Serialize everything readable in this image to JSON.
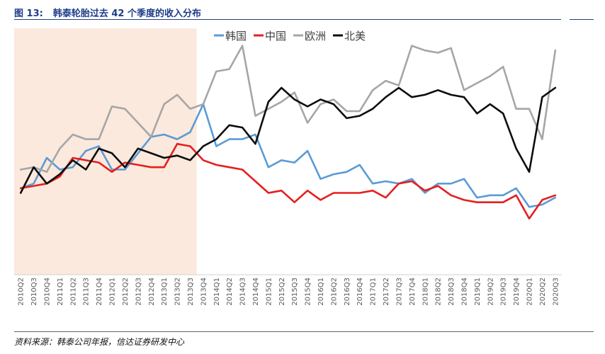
{
  "header": {
    "figure_no": "图 13:",
    "title": "韩泰轮胎过去 42 个季度的收入分布"
  },
  "footer": {
    "source": "资料来源：韩泰公司年报，信达证券研发中心"
  },
  "colors": {
    "korea": "#5b9bd5",
    "china": "#e51f1f",
    "europe": "#a6a6a6",
    "north_america": "#0d0d0d",
    "shade": "#fbe9dd",
    "title": "#1f3c88"
  },
  "chart_data": {
    "type": "line",
    "title": "韩泰轮胎过去 42 个季度的收入分布",
    "xlabel": "",
    "ylabel": "",
    "ylim": [
      0,
      100
    ],
    "y_axis_visible": false,
    "grid": false,
    "legend_position": "top",
    "highlight_range": [
      "2010Q2",
      "2013Q3"
    ],
    "categories": [
      "2010Q2",
      "2010Q3",
      "2010Q4",
      "2011Q1",
      "2011Q2",
      "2011Q3",
      "2011Q4",
      "2012Q1",
      "2012Q2",
      "2012Q3",
      "2012Q4",
      "2013Q1",
      "2013Q2",
      "2013Q3",
      "2013Q4",
      "2014Q1",
      "2014Q2",
      "2014Q3",
      "2014Q4",
      "2015Q1",
      "2015Q2",
      "2015Q3",
      "2015Q4",
      "2016Q1",
      "2016Q2",
      "2016Q3",
      "2016Q4",
      "2017Q1",
      "2017Q2",
      "2017Q3",
      "2017Q4",
      "2018Q1",
      "2018Q2",
      "2018Q3",
      "2018Q4",
      "2019Q1",
      "2019Q2",
      "2019Q3",
      "2019Q4",
      "2020Q1",
      "2020Q2",
      "2020Q3"
    ],
    "series": [
      {
        "name": "韩国",
        "color_key": "korea",
        "values": [
          37,
          39,
          50,
          45,
          46,
          53,
          55,
          45,
          45,
          52,
          59,
          60,
          58,
          61,
          73,
          55,
          58,
          58,
          60,
          46,
          49,
          48,
          53,
          41,
          43,
          44,
          47,
          39,
          40,
          39,
          41,
          35,
          39,
          39,
          41,
          33,
          34,
          34,
          37,
          29,
          30,
          33
        ]
      },
      {
        "name": "中国",
        "color_key": "china",
        "values": [
          37,
          38,
          39,
          42,
          50,
          49,
          48,
          44,
          48,
          47,
          46,
          46,
          56,
          55,
          49,
          47,
          46,
          45,
          40,
          35,
          36,
          31,
          36,
          32,
          35,
          35,
          35,
          36,
          33,
          39,
          40,
          36,
          38,
          34,
          32,
          31,
          31,
          31,
          34,
          24,
          32,
          34
        ]
      },
      {
        "name": "欧洲",
        "color_key": "europe",
        "values": [
          45,
          46,
          44,
          54,
          60,
          58,
          58,
          72,
          71,
          65,
          59,
          73,
          77,
          71,
          73,
          87,
          88,
          98,
          68,
          71,
          74,
          78,
          65,
          73,
          75,
          70,
          70,
          79,
          83,
          81,
          98,
          96,
          95,
          97,
          79,
          82,
          85,
          89,
          71,
          71,
          58,
          96
        ]
      },
      {
        "name": "北美",
        "color_key": "north_america",
        "values": [
          35,
          46,
          39,
          43,
          49,
          45,
          54,
          52,
          46,
          54,
          52,
          50,
          51,
          49,
          55,
          58,
          64,
          63,
          56,
          74,
          80,
          75,
          72,
          75,
          73,
          67,
          68,
          71,
          76,
          80,
          76,
          77,
          79,
          77,
          76,
          69,
          73,
          69,
          54,
          44,
          76,
          80
        ]
      }
    ]
  }
}
